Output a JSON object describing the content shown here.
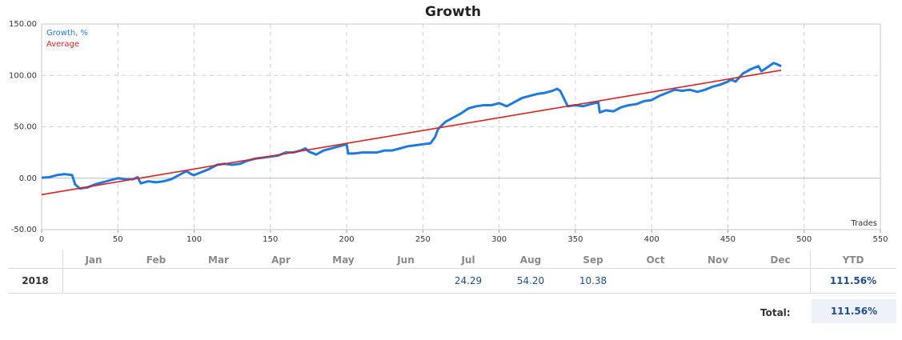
{
  "chart_data": {
    "type": "line",
    "title": "Growth",
    "xlabel": "Trades",
    "ylabel": "",
    "xlim": [
      0,
      550
    ],
    "ylim": [
      -50,
      150
    ],
    "xticks": [
      0,
      50,
      100,
      150,
      200,
      250,
      300,
      350,
      400,
      450,
      500,
      550
    ],
    "yticks": [
      -50,
      0,
      50,
      100,
      150
    ],
    "ytick_labels": [
      "-50.00",
      "0.00",
      "50.00",
      "100.00",
      "150.00"
    ],
    "grid": true,
    "legend_placement": "top-left",
    "series": [
      {
        "name": "Growth, %",
        "color": "#1f7ae0",
        "x": [
          0,
          5,
          10,
          15,
          20,
          22,
          25,
          30,
          35,
          40,
          45,
          50,
          55,
          60,
          63,
          65,
          70,
          75,
          80,
          85,
          90,
          95,
          98,
          100,
          105,
          110,
          115,
          120,
          125,
          130,
          135,
          140,
          145,
          150,
          155,
          160,
          165,
          170,
          173,
          175,
          180,
          185,
          190,
          195,
          200,
          201,
          205,
          210,
          215,
          220,
          225,
          230,
          235,
          240,
          245,
          250,
          255,
          258,
          260,
          265,
          270,
          275,
          280,
          285,
          290,
          295,
          300,
          305,
          310,
          315,
          320,
          325,
          330,
          335,
          338,
          340,
          345,
          350,
          355,
          360,
          365,
          366,
          370,
          375,
          380,
          385,
          390,
          395,
          400,
          405,
          410,
          415,
          420,
          425,
          430,
          435,
          440,
          445,
          450,
          452,
          455,
          460,
          465,
          470,
          472,
          475,
          480,
          482,
          485
        ],
        "y": [
          0.5,
          1,
          3,
          4,
          3,
          -6,
          -10,
          -9,
          -6,
          -4,
          -2,
          0,
          -1,
          -1,
          1,
          -5,
          -3,
          -4,
          -3,
          -1,
          3,
          7,
          4,
          3,
          6,
          9,
          13,
          14,
          13,
          14,
          17,
          19,
          20,
          21,
          22,
          25,
          25,
          27,
          29,
          26,
          23,
          27,
          29,
          31,
          33,
          24,
          24,
          25,
          25,
          25,
          27,
          27,
          29,
          31,
          32,
          33,
          34,
          40,
          48,
          55,
          59,
          63,
          68,
          70,
          71,
          71,
          73,
          70,
          74,
          78,
          80,
          82,
          83,
          85,
          87,
          85,
          70,
          71,
          70,
          72,
          74,
          64,
          66,
          65,
          69,
          71,
          72,
          75,
          76,
          80,
          83,
          86,
          85,
          86,
          84,
          86,
          89,
          91,
          94,
          96,
          94,
          102,
          106,
          109,
          104,
          107,
          112,
          111,
          109
        ]
      },
      {
        "name": "Average",
        "color": "#e02020",
        "x": [
          0,
          485
        ],
        "y": [
          -16,
          105
        ]
      }
    ]
  },
  "table": {
    "months": [
      "Jan",
      "Feb",
      "Mar",
      "Apr",
      "May",
      "Jun",
      "Jul",
      "Aug",
      "Sep",
      "Oct",
      "Nov",
      "Dec"
    ],
    "ytd_header": "YTD",
    "rows": [
      {
        "year": "2018",
        "values": [
          "",
          "",
          "",
          "",
          "",
          "",
          "24.29",
          "54.20",
          "10.38",
          "",
          "",
          ""
        ],
        "ytd": "111.56%"
      }
    ],
    "total_label": "Total:",
    "total_value": "111.56%"
  }
}
